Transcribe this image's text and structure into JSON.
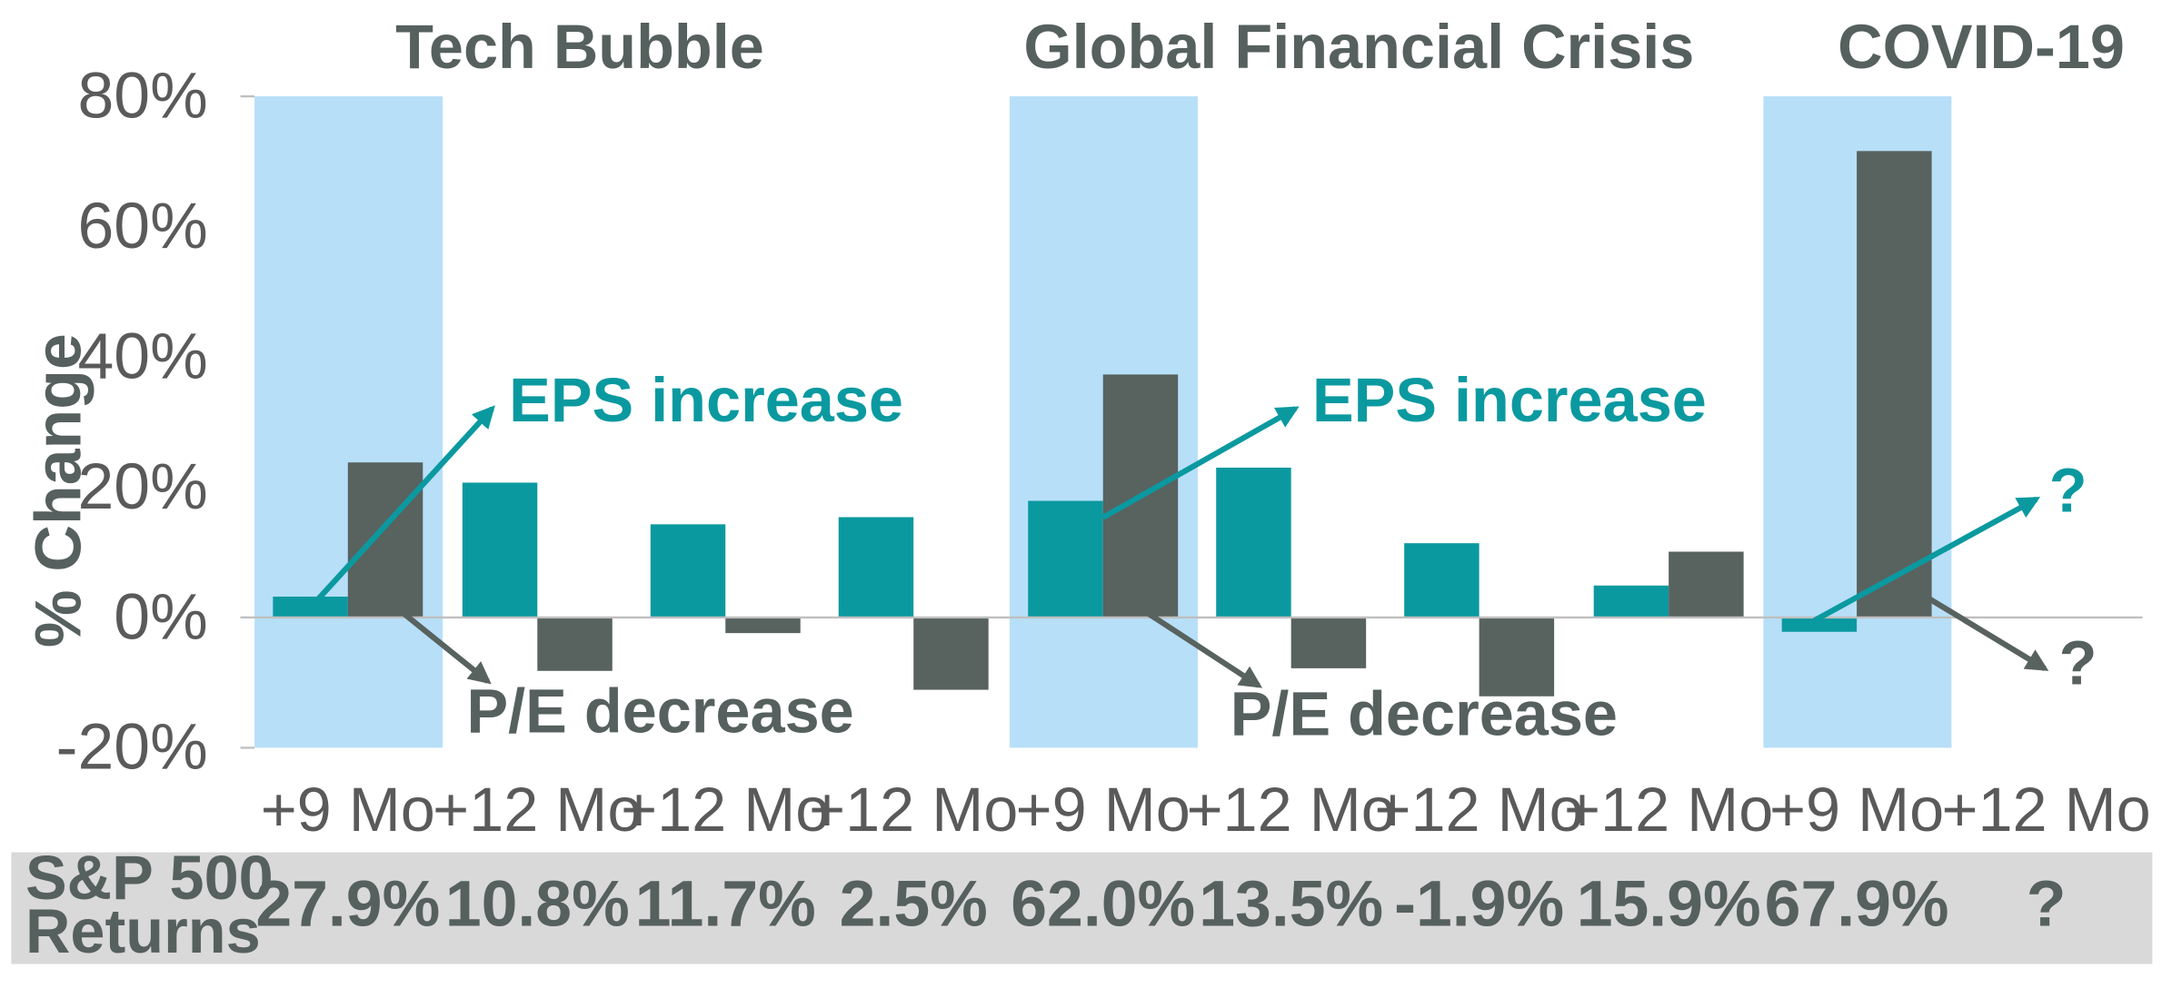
{
  "colors": {
    "eps": "#0b99a0",
    "pe": "#58625f",
    "highlight": "#b7dff8",
    "table_bg": "#d9d9d9",
    "text": "#56605e",
    "axis": "#bfbfbf"
  },
  "groups": [
    {
      "title": "Tech Bubble"
    },
    {
      "title": "Global Financial Crisis"
    },
    {
      "title": "COVID-19"
    }
  ],
  "annotations": {
    "eps_increase": "EPS increase",
    "pe_decrease": "P/E decrease",
    "unknown": "?"
  },
  "returns_table": {
    "label_line1": "S&P 500",
    "label_line2": "Returns",
    "values": [
      "27.9%",
      "10.8%",
      "11.7%",
      "2.5%",
      "62.0%",
      "13.5%",
      "-1.9%",
      "15.9%",
      "67.9%",
      "?"
    ]
  },
  "chart_data": {
    "type": "bar",
    "ylabel": "% Change",
    "xlabel": "",
    "ylim": [
      -20,
      80
    ],
    "yticks": [
      80,
      60,
      40,
      20,
      0,
      -20
    ],
    "ytick_labels": [
      "80%",
      "60%",
      "40%",
      "20%",
      "0%",
      "-20%"
    ],
    "categories": [
      "+9 Mo",
      "+12 Mo",
      "+12 Mo",
      "+12 Mo",
      "+9 Mo",
      "+12 Mo",
      "+12 Mo",
      "+12 Mo",
      "+9 Mo",
      "+12 Mo"
    ],
    "series": [
      {
        "values": [
          3.2,
          20.7,
          14.3,
          15.4,
          17.9,
          23.0,
          11.4,
          4.9,
          -2.2,
          null
        ]
      },
      {
        "values": [
          23.8,
          -8.2,
          -2.4,
          -11.1,
          37.3,
          -7.8,
          -12.1,
          10.1,
          71.6,
          null
        ]
      }
    ],
    "highlighted_categories": [
      0,
      4,
      8
    ],
    "grid": false
  }
}
